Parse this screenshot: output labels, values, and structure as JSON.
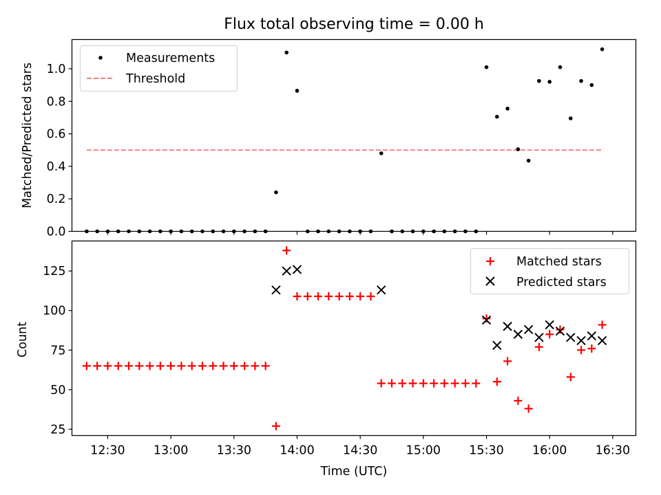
{
  "chart_data": [
    {
      "type": "scatter",
      "title": "Flux total observing time = 0.00 h",
      "xlabel": "",
      "ylabel": "Matched/Predicted stars",
      "xlim": [
        "12:13",
        "16:41"
      ],
      "ylim": [
        0,
        1.18
      ],
      "yticks": [
        0.0,
        0.2,
        0.4,
        0.6,
        0.8,
        1.0
      ],
      "yticklabels": [
        "0.0",
        "0.2",
        "0.4",
        "0.6",
        "0.8",
        "1.0"
      ],
      "legend": "upper-left",
      "series": [
        {
          "name": "Measurements",
          "marker": "dot",
          "color": "#000000",
          "points": [
            [
              "12:20",
              0
            ],
            [
              "12:25",
              0
            ],
            [
              "12:30",
              0
            ],
            [
              "12:35",
              0
            ],
            [
              "12:40",
              0
            ],
            [
              "12:45",
              0
            ],
            [
              "12:50",
              0
            ],
            [
              "12:55",
              0
            ],
            [
              "13:00",
              0
            ],
            [
              "13:05",
              0
            ],
            [
              "13:10",
              0
            ],
            [
              "13:15",
              0
            ],
            [
              "13:20",
              0
            ],
            [
              "13:25",
              0
            ],
            [
              "13:30",
              0
            ],
            [
              "13:35",
              0
            ],
            [
              "13:40",
              0
            ],
            [
              "13:45",
              0
            ],
            [
              "13:50",
              0.24
            ],
            [
              "13:55",
              1.1
            ],
            [
              "14:00",
              0.865
            ],
            [
              "14:05",
              0
            ],
            [
              "14:10",
              0
            ],
            [
              "14:15",
              0
            ],
            [
              "14:20",
              0
            ],
            [
              "14:25",
              0
            ],
            [
              "14:30",
              0
            ],
            [
              "14:35",
              0
            ],
            [
              "14:40",
              0.48
            ],
            [
              "14:45",
              0
            ],
            [
              "14:50",
              0
            ],
            [
              "14:55",
              0
            ],
            [
              "15:00",
              0
            ],
            [
              "15:05",
              0
            ],
            [
              "15:10",
              0
            ],
            [
              "15:15",
              0
            ],
            [
              "15:20",
              0
            ],
            [
              "15:25",
              0
            ],
            [
              "15:30",
              1.01
            ],
            [
              "15:35",
              0.705
            ],
            [
              "15:40",
              0.755
            ],
            [
              "15:45",
              0.505
            ],
            [
              "15:50",
              0.435
            ],
            [
              "15:55",
              0.925
            ],
            [
              "16:00",
              0.92
            ],
            [
              "16:05",
              1.01
            ],
            [
              "16:10",
              0.695
            ],
            [
              "16:15",
              0.925
            ],
            [
              "16:20",
              0.9
            ],
            [
              "16:25",
              1.12
            ]
          ]
        },
        {
          "name": "Threshold",
          "style": "dashed-line",
          "color": "#f08080",
          "points": [
            [
              "12:20",
              0.5
            ],
            [
              "16:25",
              0.5
            ]
          ]
        }
      ]
    },
    {
      "type": "scatter",
      "title": "",
      "xlabel": "Time (UTC)",
      "ylabel": "Count",
      "xlim": [
        "12:13",
        "16:41"
      ],
      "ylim": [
        21,
        144
      ],
      "yticks": [
        25,
        50,
        75,
        100,
        125
      ],
      "yticklabels": [
        "25",
        "50",
        "75",
        "100",
        "125"
      ],
      "xticks": [
        "12:30",
        "13:00",
        "13:30",
        "14:00",
        "14:30",
        "15:00",
        "15:30",
        "16:00",
        "16:30"
      ],
      "legend": "upper-right",
      "series": [
        {
          "name": "Matched stars",
          "marker": "plus",
          "color": "#ff0000",
          "points": [
            [
              "12:20",
              65
            ],
            [
              "12:25",
              65
            ],
            [
              "12:30",
              65
            ],
            [
              "12:35",
              65
            ],
            [
              "12:40",
              65
            ],
            [
              "12:45",
              65
            ],
            [
              "12:50",
              65
            ],
            [
              "12:55",
              65
            ],
            [
              "13:00",
              65
            ],
            [
              "13:05",
              65
            ],
            [
              "13:10",
              65
            ],
            [
              "13:15",
              65
            ],
            [
              "13:20",
              65
            ],
            [
              "13:25",
              65
            ],
            [
              "13:30",
              65
            ],
            [
              "13:35",
              65
            ],
            [
              "13:40",
              65
            ],
            [
              "13:45",
              65
            ],
            [
              "13:50",
              27
            ],
            [
              "13:55",
              138
            ],
            [
              "14:00",
              109
            ],
            [
              "14:05",
              109
            ],
            [
              "14:10",
              109
            ],
            [
              "14:15",
              109
            ],
            [
              "14:20",
              109
            ],
            [
              "14:25",
              109
            ],
            [
              "14:30",
              109
            ],
            [
              "14:35",
              109
            ],
            [
              "14:40",
              54
            ],
            [
              "14:45",
              54
            ],
            [
              "14:50",
              54
            ],
            [
              "14:55",
              54
            ],
            [
              "15:00",
              54
            ],
            [
              "15:05",
              54
            ],
            [
              "15:10",
              54
            ],
            [
              "15:15",
              54
            ],
            [
              "15:20",
              54
            ],
            [
              "15:25",
              54
            ],
            [
              "15:30",
              95
            ],
            [
              "15:35",
              55
            ],
            [
              "15:40",
              68
            ],
            [
              "15:45",
              43
            ],
            [
              "15:50",
              38
            ],
            [
              "15:55",
              77
            ],
            [
              "16:00",
              85
            ],
            [
              "16:05",
              88
            ],
            [
              "16:10",
              58
            ],
            [
              "16:15",
              75
            ],
            [
              "16:20",
              76
            ],
            [
              "16:25",
              91
            ]
          ]
        },
        {
          "name": "Predicted stars",
          "marker": "x",
          "color": "#000000",
          "points": [
            [
              "13:50",
              113
            ],
            [
              "13:55",
              125
            ],
            [
              "14:00",
              126
            ],
            [
              "14:40",
              113
            ],
            [
              "15:30",
              94
            ],
            [
              "15:35",
              78
            ],
            [
              "15:40",
              90
            ],
            [
              "15:45",
              85
            ],
            [
              "15:50",
              88
            ],
            [
              "15:55",
              83
            ],
            [
              "16:00",
              91
            ],
            [
              "16:05",
              87
            ],
            [
              "16:10",
              83
            ],
            [
              "16:15",
              81
            ],
            [
              "16:20",
              84
            ],
            [
              "16:25",
              81
            ]
          ]
        }
      ]
    }
  ]
}
